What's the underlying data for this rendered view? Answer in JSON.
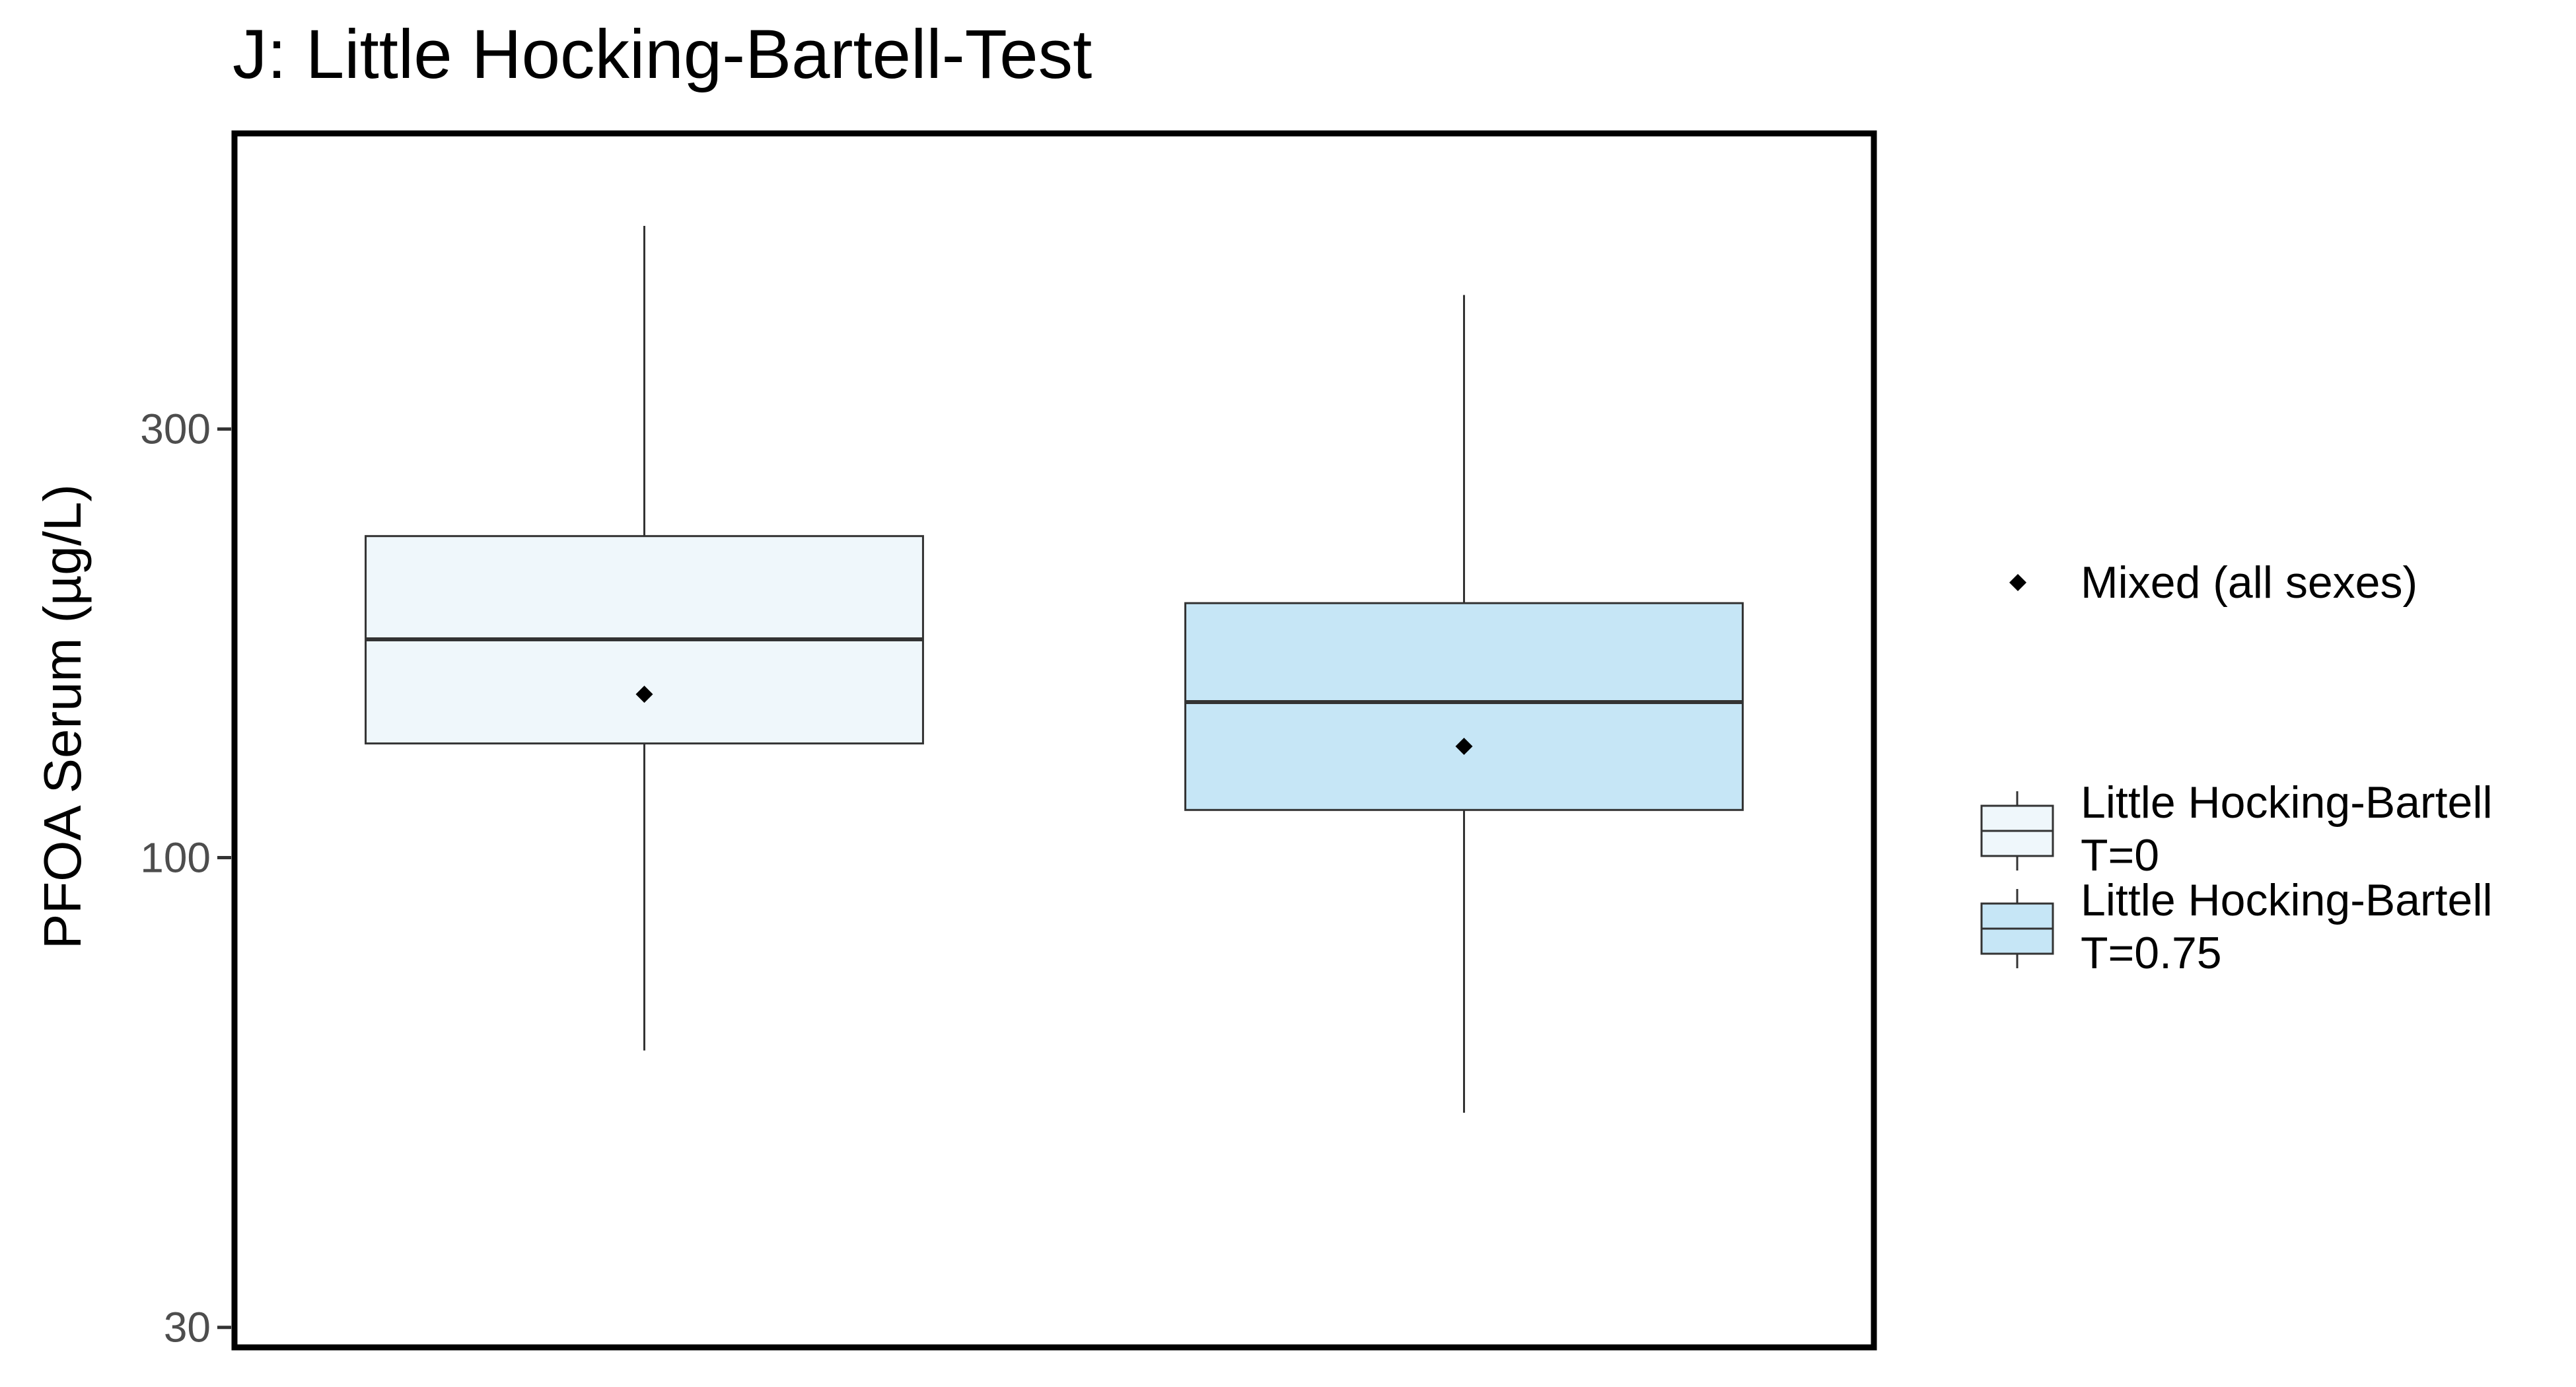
{
  "chart_data": {
    "type": "box",
    "title": "J: Little Hocking-Bartell-Test",
    "xlabel": "",
    "ylabel": "PFOA Serum (µg/L)",
    "y_scale": "log",
    "ylim": [
      28.5,
      640
    ],
    "yticks": [
      30,
      100,
      300
    ],
    "ytick_labels": [
      "30",
      "100",
      "300"
    ],
    "grid": false,
    "legend_position": "right",
    "series": [
      {
        "name": "Little Hocking-Bartell T=0",
        "legend_lines": [
          "Little Hocking-Bartell",
          "T=0"
        ],
        "fill": "#eff7fb",
        "whisker_low": 61,
        "q1": 134,
        "median": 175,
        "q3": 228,
        "whisker_high": 505,
        "mean": 152
      },
      {
        "name": "Little Hocking-Bartell T=0.75",
        "legend_lines": [
          "Little Hocking-Bartell",
          "T=0.75"
        ],
        "fill": "#c6e6f6",
        "whisker_low": 52,
        "q1": 113,
        "median": 149,
        "q3": 192,
        "whisker_high": 423,
        "mean": 133
      }
    ],
    "mean_marker_label": "Mixed (all sexes)",
    "colors": {
      "stroke": "#333333",
      "frame": "#000000",
      "mean": "#000000"
    }
  }
}
